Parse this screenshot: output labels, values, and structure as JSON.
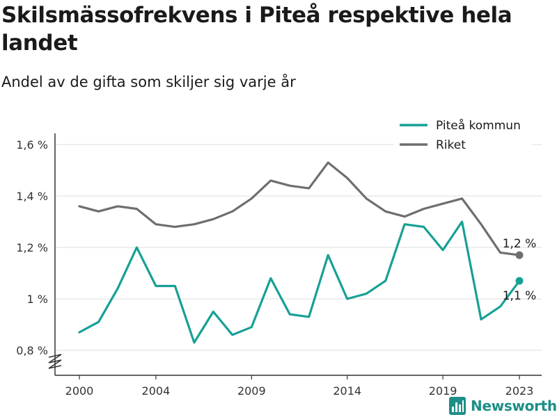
{
  "chart_data": {
    "type": "line",
    "title": "Skilsmässofrekvens i Piteå respektive hela landet",
    "subtitle": "Andel av de gifta som skiljer sig varje år",
    "xlabel": "",
    "ylabel": "",
    "x": [
      2000,
      2001,
      2002,
      2003,
      2004,
      2005,
      2006,
      2007,
      2008,
      2009,
      2010,
      2011,
      2012,
      2013,
      2014,
      2015,
      2016,
      2017,
      2018,
      2019,
      2020,
      2021,
      2022,
      2023
    ],
    "xlim": [
      2000,
      2023
    ],
    "xticks": [
      2000,
      2004,
      2009,
      2014,
      2019,
      2023
    ],
    "ylim": [
      0.8,
      1.6
    ],
    "yticks": [
      0.8,
      1.0,
      1.2,
      1.4,
      1.6
    ],
    "ytick_labels": [
      "0,8 %",
      "1 %",
      "1,2 %",
      "1,4 %",
      "1,6 %"
    ],
    "grid": "horizontal",
    "axis_break": true,
    "legend_position": "top-right",
    "series": [
      {
        "name": "Piteå kommun",
        "color": "#17a095",
        "values": [
          0.87,
          0.91,
          1.04,
          1.2,
          1.05,
          1.05,
          0.83,
          0.95,
          0.86,
          0.89,
          1.08,
          0.94,
          0.93,
          1.17,
          1.0,
          1.02,
          1.07,
          1.29,
          1.28,
          1.19,
          1.3,
          0.92,
          0.97,
          1.07
        ],
        "end_label": "1,1 %"
      },
      {
        "name": "Riket",
        "color": "#6e6e6e",
        "values": [
          1.36,
          1.34,
          1.36,
          1.35,
          1.29,
          1.28,
          1.29,
          1.31,
          1.34,
          1.39,
          1.46,
          1.44,
          1.43,
          1.53,
          1.47,
          1.39,
          1.34,
          1.32,
          1.35,
          1.37,
          1.39,
          1.29,
          1.18,
          1.17
        ],
        "end_label": "1,2 %"
      }
    ]
  },
  "brand": {
    "name": "Newsworthy",
    "icon": "bar-chart-logo-icon"
  }
}
